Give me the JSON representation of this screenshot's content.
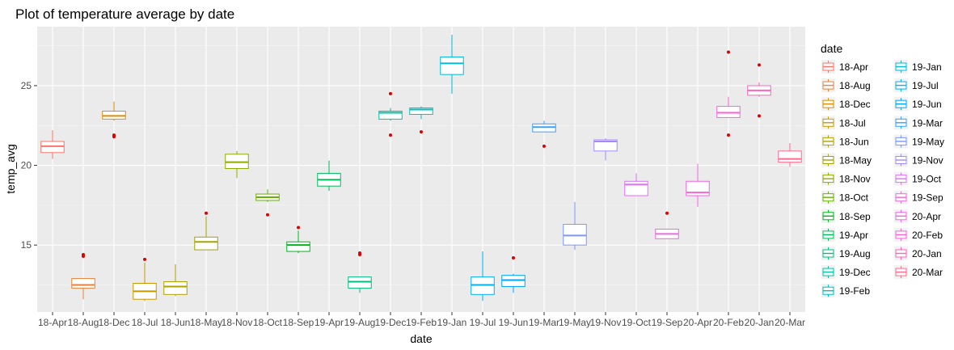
{
  "chart_data": {
    "type": "boxplot",
    "title": "Plot of temperature average by date",
    "xlabel": "date",
    "ylabel": "temp_avg",
    "ylim": [
      10.8,
      28.7
    ],
    "y_ticks": [
      15,
      20,
      25
    ],
    "grid": true,
    "legend": {
      "title": "date",
      "placement": "right",
      "columns": 2
    },
    "outlier_color": "#e00000",
    "series": [
      {
        "name": "18-Apr",
        "color": "#F8766D",
        "min": 20.4,
        "q1": 20.8,
        "median": 21.2,
        "q3": 21.5,
        "max": 22.2,
        "outliers": []
      },
      {
        "name": "18-Aug",
        "color": "#EC8239",
        "min": 11.6,
        "q1": 12.3,
        "median": 12.5,
        "q3": 12.9,
        "max": 12.9,
        "outliers": [
          14.3,
          14.4
        ]
      },
      {
        "name": "18-Dec",
        "color": "#DB8E00",
        "min": 22.8,
        "q1": 22.9,
        "median": 23.1,
        "q3": 23.4,
        "max": 24.0,
        "outliers": [
          21.8,
          21.9
        ]
      },
      {
        "name": "18-Jul",
        "color": "#C79800",
        "min": 11.5,
        "q1": 11.6,
        "median": 12.1,
        "q3": 12.6,
        "max": 13.9,
        "outliers": [
          14.1
        ]
      },
      {
        "name": "18-Jun",
        "color": "#AEA200",
        "min": 11.8,
        "q1": 11.9,
        "median": 12.4,
        "q3": 12.7,
        "max": 13.8,
        "outliers": []
      },
      {
        "name": "18-May",
        "color": "#A3A500",
        "min": 14.7,
        "q1": 14.7,
        "median": 15.2,
        "q3": 15.5,
        "max": 16.8,
        "outliers": [
          17.0
        ]
      },
      {
        "name": "18-Nov",
        "color": "#8FAA00",
        "min": 19.2,
        "q1": 19.8,
        "median": 20.2,
        "q3": 20.7,
        "max": 20.9,
        "outliers": []
      },
      {
        "name": "18-Oct",
        "color": "#64B200",
        "min": 17.7,
        "q1": 17.8,
        "median": 18.0,
        "q3": 18.2,
        "max": 18.5,
        "outliers": [
          16.9
        ]
      },
      {
        "name": "18-Sep",
        "color": "#00B81B",
        "min": 14.5,
        "q1": 14.6,
        "median": 15.0,
        "q3": 15.2,
        "max": 15.9,
        "outliers": [
          16.1
        ]
      },
      {
        "name": "19-Apr",
        "color": "#00BD5C",
        "min": 18.4,
        "q1": 18.7,
        "median": 19.1,
        "q3": 19.5,
        "max": 20.3,
        "outliers": []
      },
      {
        "name": "19-Aug",
        "color": "#00BF7D",
        "min": 12.0,
        "q1": 12.3,
        "median": 12.7,
        "q3": 13.0,
        "max": 13.0,
        "outliers": [
          14.4,
          14.5
        ]
      },
      {
        "name": "19-Dec",
        "color": "#00C1A3",
        "min": 22.8,
        "q1": 22.9,
        "median": 23.3,
        "q3": 23.4,
        "max": 23.6,
        "outliers": [
          21.9,
          24.5
        ]
      },
      {
        "name": "19-Feb",
        "color": "#00BFC4",
        "min": 22.9,
        "q1": 23.2,
        "median": 23.5,
        "q3": 23.6,
        "max": 23.7,
        "outliers": [
          22.1
        ]
      },
      {
        "name": "19-Jan",
        "color": "#00BAE0",
        "min": 24.5,
        "q1": 25.7,
        "median": 26.4,
        "q3": 26.8,
        "max": 28.2,
        "outliers": []
      },
      {
        "name": "19-Jul",
        "color": "#00B0F6",
        "min": 11.5,
        "q1": 11.9,
        "median": 12.5,
        "q3": 13.0,
        "max": 14.6,
        "outliers": []
      },
      {
        "name": "19-Jun",
        "color": "#00A5FF",
        "min": 12.0,
        "q1": 12.4,
        "median": 12.8,
        "q3": 13.1,
        "max": 13.2,
        "outliers": [
          14.2
        ]
      },
      {
        "name": "19-Mar",
        "color": "#35A2FF",
        "min": 22.1,
        "q1": 22.1,
        "median": 22.4,
        "q3": 22.6,
        "max": 22.8,
        "outliers": [
          21.2
        ]
      },
      {
        "name": "19-May",
        "color": "#7997FF",
        "min": 14.7,
        "q1": 15.0,
        "median": 15.6,
        "q3": 16.3,
        "max": 17.7,
        "outliers": []
      },
      {
        "name": "19-Nov",
        "color": "#A58AFF",
        "min": 20.3,
        "q1": 20.9,
        "median": 21.5,
        "q3": 21.6,
        "max": 21.7,
        "outliers": []
      },
      {
        "name": "19-Oct",
        "color": "#DF70F8",
        "min": 18.1,
        "q1": 18.1,
        "median": 18.8,
        "q3": 19.0,
        "max": 19.5,
        "outliers": []
      },
      {
        "name": "19-Sep",
        "color": "#EA6BD9",
        "min": 15.4,
        "q1": 15.4,
        "median": 15.7,
        "q3": 16.0,
        "max": 16.0,
        "outliers": [
          17.0
        ]
      },
      {
        "name": "20-Apr",
        "color": "#F564E3",
        "min": 17.4,
        "q1": 18.1,
        "median": 18.3,
        "q3": 19.0,
        "max": 20.1,
        "outliers": []
      },
      {
        "name": "20-Feb",
        "color": "#FB61D7",
        "min": 23.0,
        "q1": 23.0,
        "median": 23.3,
        "q3": 23.7,
        "max": 24.3,
        "outliers": [
          21.9,
          27.1
        ]
      },
      {
        "name": "20-Jan",
        "color": "#FF62BC",
        "min": 24.3,
        "q1": 24.4,
        "median": 24.7,
        "q3": 25.0,
        "max": 25.2,
        "outliers": [
          23.1,
          26.3
        ]
      },
      {
        "name": "20-Mar",
        "color": "#FF6C91",
        "min": 19.9,
        "q1": 20.2,
        "median": 20.4,
        "q3": 20.9,
        "max": 21.4,
        "outliers": []
      }
    ]
  }
}
